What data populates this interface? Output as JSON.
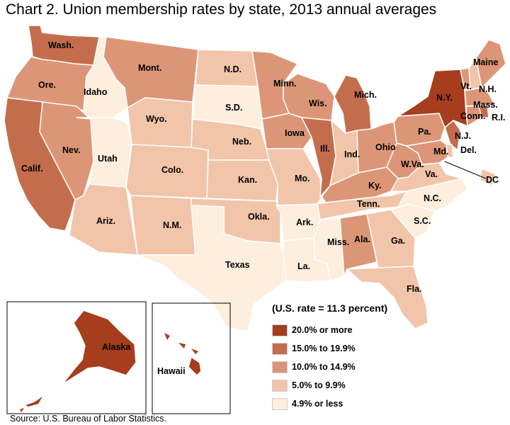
{
  "title": "Chart 2. Union membership rates by state, 2013 annual averages",
  "legend": {
    "title": "(U.S. rate = 11.3 percent)",
    "items": [
      {
        "label": "20.0% or more",
        "color": "#a63d1d"
      },
      {
        "label": "15.0% to 19.9%",
        "color": "#c46d4d"
      },
      {
        "label": "10.0% to 14.9%",
        "color": "#dc9677"
      },
      {
        "label": "5.0% to 9.9%",
        "color": "#f2c4a9"
      },
      {
        "label": "4.9% or less",
        "color": "#fdeede"
      }
    ]
  },
  "source": "Source: U.S. Bureau of Labor Statistics.",
  "states": [
    {
      "label": "Wash.",
      "cls": 1
    },
    {
      "label": "Ore.",
      "cls": 2
    },
    {
      "label": "Calif.",
      "cls": 1
    },
    {
      "label": "Idaho",
      "cls": 4
    },
    {
      "label": "Nev.",
      "cls": 2
    },
    {
      "label": "Utah",
      "cls": 4
    },
    {
      "label": "Ariz.",
      "cls": 3
    },
    {
      "label": "Mont.",
      "cls": 2
    },
    {
      "label": "Wyo.",
      "cls": 3
    },
    {
      "label": "Colo.",
      "cls": 3
    },
    {
      "label": "N.M.",
      "cls": 3
    },
    {
      "label": "N.D.",
      "cls": 3
    },
    {
      "label": "S.D.",
      "cls": 4
    },
    {
      "label": "Neb.",
      "cls": 3
    },
    {
      "label": "Kan.",
      "cls": 3
    },
    {
      "label": "Okla.",
      "cls": 3
    },
    {
      "label": "Texas",
      "cls": 4
    },
    {
      "label": "Minn.",
      "cls": 2
    },
    {
      "label": "Iowa",
      "cls": 2
    },
    {
      "label": "Mo.",
      "cls": 3
    },
    {
      "label": "Ark.",
      "cls": 4
    },
    {
      "label": "La.",
      "cls": 4
    },
    {
      "label": "Wis.",
      "cls": 2
    },
    {
      "label": "Ill.",
      "cls": 1
    },
    {
      "label": "Mich.",
      "cls": 1
    },
    {
      "label": "Ind.",
      "cls": 3
    },
    {
      "label": "Ohio",
      "cls": 2
    },
    {
      "label": "Ky.",
      "cls": 2
    },
    {
      "label": "Tenn.",
      "cls": 3
    },
    {
      "label": "Miss.",
      "cls": 4
    },
    {
      "label": "Ala.",
      "cls": 2
    },
    {
      "label": "Ga.",
      "cls": 3
    },
    {
      "label": "Fla.",
      "cls": 3
    },
    {
      "label": "S.C.",
      "cls": 4
    },
    {
      "label": "N.C.",
      "cls": 4
    },
    {
      "label": "Va.",
      "cls": 3
    },
    {
      "label": "W.Va.",
      "cls": 2
    },
    {
      "label": "Pa.",
      "cls": 2
    },
    {
      "label": "N.Y.",
      "cls": 0
    },
    {
      "label": "N.J.",
      "cls": 1
    },
    {
      "label": "Del.",
      "cls": 3
    },
    {
      "label": "Md.",
      "cls": 2
    },
    {
      "label": "DC",
      "cls": 3
    },
    {
      "label": "Vt.",
      "cls": 2
    },
    {
      "label": "N.H.",
      "cls": 3
    },
    {
      "label": "Maine",
      "cls": 2
    },
    {
      "label": "Mass.",
      "cls": 2
    },
    {
      "label": "Conn.",
      "cls": 2
    },
    {
      "label": "R.I.",
      "cls": 1
    },
    {
      "label": "Alaska",
      "cls": 0
    },
    {
      "label": "Hawaii",
      "cls": 0
    }
  ]
}
